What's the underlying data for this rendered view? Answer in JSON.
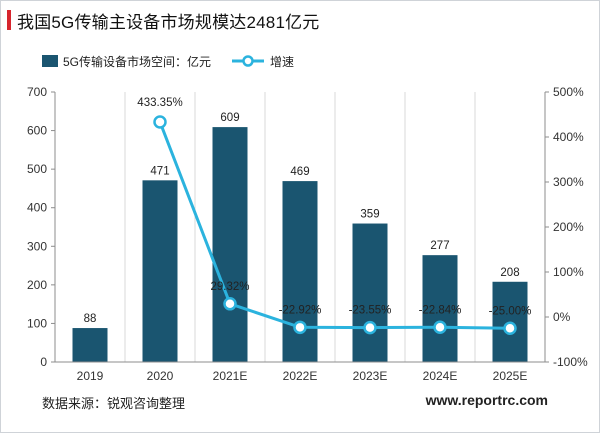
{
  "title": "我国5G传输主设备市场规模达2481亿元",
  "source": "数据来源：锐观咨询整理",
  "website": "www.reportrc.com",
  "colors": {
    "bar": "#1a5570",
    "line": "#2bb3de",
    "accent": "#d7262e"
  },
  "chart_data": {
    "type": "bar",
    "categories": [
      "2019",
      "2020",
      "2021E",
      "2022E",
      "2023E",
      "2024E",
      "2025E"
    ],
    "series": [
      {
        "name": "5G传输设备市场空间：亿元",
        "type": "bar",
        "axis": "left",
        "values": [
          88,
          471,
          609,
          469,
          359,
          277,
          208
        ],
        "labels": [
          "88",
          "471",
          "609",
          "469",
          "359",
          "277",
          "208"
        ]
      },
      {
        "name": "增速",
        "type": "line",
        "axis": "right",
        "values": [
          null,
          433.35,
          29.32,
          -22.92,
          -23.55,
          -22.84,
          -25.0
        ],
        "labels": [
          "",
          "433.35%",
          "29.32%",
          "-22.92%",
          "-23.55%",
          "-22.84%",
          "-25.00%"
        ]
      }
    ],
    "y_left": {
      "min": 0,
      "max": 700,
      "ticks": [
        "0",
        "100",
        "200",
        "300",
        "400",
        "500",
        "600",
        "700"
      ]
    },
    "y_right": {
      "min": -100,
      "max": 500,
      "ticks": [
        "-100%",
        "0%",
        "100%",
        "200%",
        "300%",
        "400%",
        "500%"
      ]
    },
    "grid": "vertical",
    "legend_position": "top"
  }
}
